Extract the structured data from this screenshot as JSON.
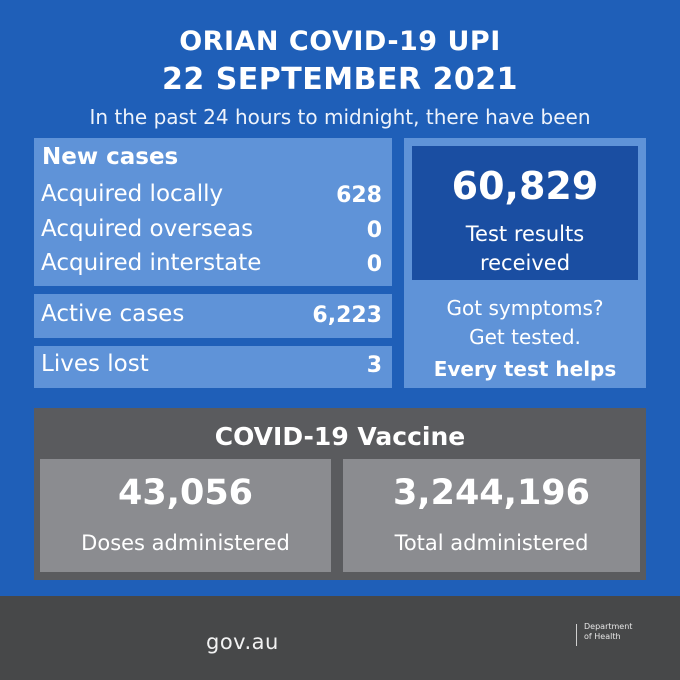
{
  "header": {
    "title_line1": "ORIAN COVID-19 UPI",
    "title_line2": "22 SEPTEMBER 2021",
    "subtitle": "In the past 24 hours to midnight, there have been"
  },
  "new_cases": {
    "heading": "New cases",
    "rows": [
      {
        "label": "Acquired locally",
        "value": "628"
      },
      {
        "label": "Acquired overseas",
        "value": "0"
      },
      {
        "label": "Acquired interstate",
        "value": "0"
      }
    ]
  },
  "active_cases": {
    "label": "Active cases",
    "value": "6,223"
  },
  "lives_lost": {
    "label": "Lives lost",
    "value": "3"
  },
  "tests": {
    "value": "60,829",
    "caption_line1": "Test results",
    "caption_line2": "received"
  },
  "symptoms": {
    "line1": "Got symptoms?",
    "line2": "Get tested.",
    "line3": "Every test helps"
  },
  "vaccine": {
    "title": "COVID-19 Vaccine",
    "doses": {
      "value": "43,056",
      "label": "Doses administered"
    },
    "total": {
      "value": "3,244,196",
      "label": "Total administered"
    }
  },
  "footer": {
    "url": "gov.au",
    "department_line1": "Department",
    "department_line2": "of Health"
  },
  "colors": {
    "background": "#1f5fb8",
    "panel_light": "#5f93d8",
    "panel_dark": "#1a4ea2",
    "vaccine_bg": "#5a5b5e",
    "vaccine_card": "#8b8c90",
    "footer_bg": "#474849"
  }
}
